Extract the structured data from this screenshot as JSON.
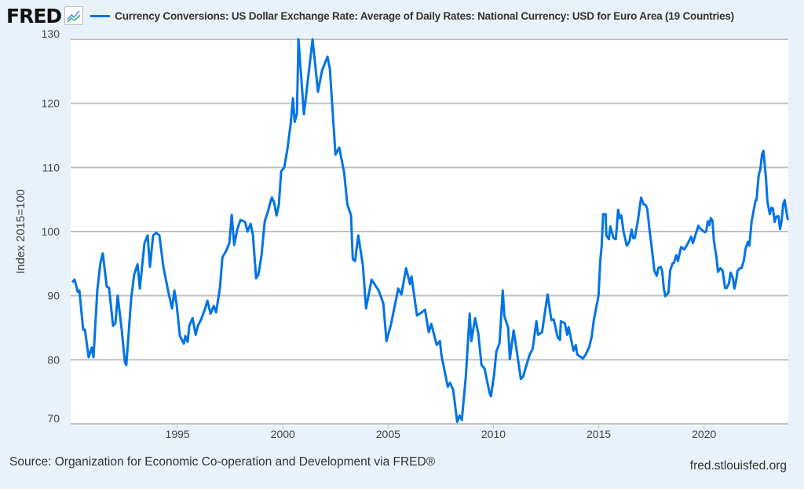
{
  "header": {
    "logo": "FRED",
    "title": "Currency Conversions: US Dollar Exchange Rate: Average of Daily Rates: National Currency: USD for Euro Area (19 Countries)"
  },
  "footer": {
    "source": "Source: Organization for Economic Co-operation and Development via FRED®",
    "site": "fred.stlouisfed.org"
  },
  "chart_data": {
    "type": "line",
    "title": "Currency Conversions: US Dollar Exchange Rate: Average of Daily Rates: National Currency: USD for Euro Area (19 Countries)",
    "xlabel": "",
    "ylabel": "Index 2015=100",
    "xlim": [
      1990,
      2024
    ],
    "ylim": [
      70,
      130
    ],
    "x_ticks": [
      1995,
      2000,
      2005,
      2010,
      2015,
      2020
    ],
    "y_ticks": [
      70,
      80,
      90,
      100,
      110,
      120,
      130
    ],
    "grid": "horizontal",
    "legend": "top",
    "color": "#0073e6",
    "series": [
      {
        "name": "Currency Conversions: US Dollar Exchange Rate: Average of Daily Rates: National Currency: USD for Euro Area (19 Countries)",
        "points": [
          [
            1990.0,
            92.1
          ],
          [
            1990.11,
            92.5
          ],
          [
            1990.26,
            90.6
          ],
          [
            1990.34,
            90.8
          ],
          [
            1990.52,
            84.7
          ],
          [
            1990.6,
            84.7
          ],
          [
            1990.78,
            80.4
          ],
          [
            1990.93,
            81.9
          ],
          [
            1991.01,
            80.4
          ],
          [
            1991.19,
            90.8
          ],
          [
            1991.34,
            95.1
          ],
          [
            1991.45,
            96.6
          ],
          [
            1991.64,
            91.4
          ],
          [
            1991.75,
            91.2
          ],
          [
            1991.94,
            85.3
          ],
          [
            1992.05,
            85.7
          ],
          [
            1992.16,
            90.0
          ],
          [
            1992.35,
            84.7
          ],
          [
            1992.5,
            79.6
          ],
          [
            1992.57,
            79.2
          ],
          [
            1992.8,
            89.6
          ],
          [
            1992.94,
            93.3
          ],
          [
            1993.1,
            94.9
          ],
          [
            1993.21,
            91.1
          ],
          [
            1993.43,
            98.2
          ],
          [
            1993.58,
            99.4
          ],
          [
            1993.69,
            94.5
          ],
          [
            1993.84,
            99.4
          ],
          [
            1993.99,
            99.8
          ],
          [
            1994.14,
            99.4
          ],
          [
            1994.33,
            94.5
          ],
          [
            1994.55,
            90.8
          ],
          [
            1994.74,
            88.0
          ],
          [
            1994.85,
            90.8
          ],
          [
            1994.96,
            88.6
          ],
          [
            1995.11,
            83.7
          ],
          [
            1995.3,
            82.5
          ],
          [
            1995.37,
            83.7
          ],
          [
            1995.48,
            82.8
          ],
          [
            1995.56,
            85.3
          ],
          [
            1995.71,
            86.5
          ],
          [
            1995.86,
            83.9
          ],
          [
            1995.97,
            85.3
          ],
          [
            1996.12,
            86.3
          ],
          [
            1996.31,
            88.0
          ],
          [
            1996.42,
            89.2
          ],
          [
            1996.57,
            87.2
          ],
          [
            1996.72,
            88.4
          ],
          [
            1996.83,
            87.4
          ],
          [
            1997.01,
            91.1
          ],
          [
            1997.13,
            96.0
          ],
          [
            1997.31,
            97.0
          ],
          [
            1997.46,
            98.2
          ],
          [
            1997.57,
            102.6
          ],
          [
            1997.69,
            97.9
          ],
          [
            1997.84,
            100.4
          ],
          [
            1997.99,
            101.8
          ],
          [
            1998.21,
            101.5
          ],
          [
            1998.32,
            100.0
          ],
          [
            1998.47,
            101.2
          ],
          [
            1998.58,
            99.5
          ],
          [
            1998.73,
            92.7
          ],
          [
            1998.84,
            93.3
          ],
          [
            1998.99,
            96.3
          ],
          [
            1999.14,
            101.6
          ],
          [
            1999.29,
            103.1
          ],
          [
            1999.4,
            104.5
          ],
          [
            1999.48,
            105.3
          ],
          [
            1999.59,
            104.5
          ],
          [
            1999.7,
            102.5
          ],
          [
            1999.81,
            104.1
          ],
          [
            1999.92,
            109.4
          ],
          [
            2000.07,
            110.0
          ],
          [
            2000.22,
            112.9
          ],
          [
            2000.37,
            116.8
          ],
          [
            2000.48,
            120.8
          ],
          [
            2000.56,
            117.1
          ],
          [
            2000.67,
            118.4
          ],
          [
            2000.74,
            130.0
          ],
          [
            2001.0,
            118.3
          ],
          [
            2001.41,
            130.0
          ],
          [
            2001.67,
            121.8
          ],
          [
            2001.86,
            125.1
          ],
          [
            2002.12,
            127.3
          ],
          [
            2002.23,
            125.4
          ],
          [
            2002.5,
            112.0
          ],
          [
            2002.68,
            113.1
          ],
          [
            2002.91,
            109.2
          ],
          [
            2003.06,
            104.3
          ],
          [
            2003.24,
            102.5
          ],
          [
            2003.32,
            95.7
          ],
          [
            2003.43,
            95.4
          ],
          [
            2003.58,
            99.4
          ],
          [
            2003.8,
            94.7
          ],
          [
            2003.95,
            88.0
          ],
          [
            2004.21,
            92.5
          ],
          [
            2004.55,
            90.8
          ],
          [
            2004.77,
            88.8
          ],
          [
            2004.92,
            82.9
          ],
          [
            2005.14,
            85.6
          ],
          [
            2005.48,
            91.1
          ],
          [
            2005.63,
            90.2
          ],
          [
            2005.85,
            94.3
          ],
          [
            2006.04,
            91.8
          ],
          [
            2006.11,
            93.0
          ],
          [
            2006.37,
            86.9
          ],
          [
            2006.6,
            87.4
          ],
          [
            2006.75,
            87.8
          ],
          [
            2006.93,
            84.3
          ],
          [
            2007.05,
            85.6
          ],
          [
            2007.31,
            82.3
          ],
          [
            2007.46,
            82.9
          ],
          [
            2007.53,
            80.7
          ],
          [
            2007.83,
            75.8
          ],
          [
            2007.94,
            76.4
          ],
          [
            2008.09,
            75.3
          ],
          [
            2008.28,
            70.3
          ],
          [
            2008.39,
            71.3
          ],
          [
            2008.5,
            70.6
          ],
          [
            2008.69,
            77.4
          ],
          [
            2008.87,
            87.2
          ],
          [
            2008.95,
            82.9
          ],
          [
            2009.13,
            86.5
          ],
          [
            2009.28,
            84.1
          ],
          [
            2009.43,
            79.2
          ],
          [
            2009.58,
            78.6
          ],
          [
            2009.81,
            74.9
          ],
          [
            2009.88,
            74.3
          ],
          [
            2010.03,
            77.7
          ],
          [
            2010.14,
            81.3
          ],
          [
            2010.29,
            82.6
          ],
          [
            2010.44,
            90.8
          ],
          [
            2010.52,
            86.8
          ],
          [
            2010.7,
            85.0
          ],
          [
            2010.78,
            80.1
          ],
          [
            2010.96,
            84.6
          ],
          [
            2011.19,
            79.5
          ],
          [
            2011.3,
            77.0
          ],
          [
            2011.41,
            77.4
          ],
          [
            2011.71,
            80.7
          ],
          [
            2011.86,
            81.7
          ],
          [
            2012.04,
            86.0
          ],
          [
            2012.12,
            83.9
          ],
          [
            2012.31,
            84.3
          ],
          [
            2012.57,
            90.2
          ],
          [
            2012.75,
            86.2
          ],
          [
            2012.86,
            86.3
          ],
          [
            2013.05,
            83.5
          ],
          [
            2013.16,
            83.1
          ],
          [
            2013.2,
            86.0
          ],
          [
            2013.39,
            85.7
          ],
          [
            2013.5,
            83.9
          ],
          [
            2013.57,
            85.1
          ],
          [
            2013.69,
            83.2
          ],
          [
            2013.8,
            81.4
          ],
          [
            2013.91,
            82.3
          ],
          [
            2013.98,
            80.8
          ],
          [
            2014.25,
            80.2
          ],
          [
            2014.36,
            80.7
          ],
          [
            2014.54,
            81.9
          ],
          [
            2014.66,
            83.5
          ],
          [
            2014.77,
            86.3
          ],
          [
            2014.99,
            90.0
          ],
          [
            2015.07,
            95.4
          ],
          [
            2015.14,
            97.8
          ],
          [
            2015.21,
            102.7
          ],
          [
            2015.33,
            102.7
          ],
          [
            2015.36,
            99.4
          ],
          [
            2015.48,
            98.8
          ],
          [
            2015.55,
            100.8
          ],
          [
            2015.7,
            99.0
          ],
          [
            2015.81,
            98.8
          ],
          [
            2015.92,
            103.4
          ],
          [
            2016.0,
            102.1
          ],
          [
            2016.07,
            102.5
          ],
          [
            2016.18,
            100.0
          ],
          [
            2016.33,
            97.8
          ],
          [
            2016.45,
            98.4
          ],
          [
            2016.56,
            100.3
          ],
          [
            2016.63,
            99.0
          ],
          [
            2016.71,
            99.0
          ],
          [
            2016.86,
            101.8
          ],
          [
            2017.01,
            105.3
          ],
          [
            2017.12,
            104.3
          ],
          [
            2017.23,
            104.1
          ],
          [
            2017.3,
            103.6
          ],
          [
            2017.42,
            100.0
          ],
          [
            2017.49,
            98.2
          ],
          [
            2017.64,
            93.9
          ],
          [
            2017.75,
            93.1
          ],
          [
            2017.83,
            94.3
          ],
          [
            2017.94,
            94.5
          ],
          [
            2018.01,
            93.9
          ],
          [
            2018.09,
            91.1
          ],
          [
            2018.16,
            89.9
          ],
          [
            2018.31,
            90.5
          ],
          [
            2018.39,
            93.9
          ],
          [
            2018.5,
            95.0
          ],
          [
            2018.57,
            95.1
          ],
          [
            2018.68,
            96.3
          ],
          [
            2018.76,
            95.4
          ],
          [
            2018.91,
            97.6
          ],
          [
            2019.06,
            97.2
          ],
          [
            2019.24,
            98.2
          ],
          [
            2019.39,
            99.2
          ],
          [
            2019.47,
            98.2
          ],
          [
            2019.73,
            100.9
          ],
          [
            2019.84,
            100.4
          ],
          [
            2020.03,
            99.9
          ],
          [
            2020.1,
            100.0
          ],
          [
            2020.18,
            101.6
          ],
          [
            2020.25,
            101.0
          ],
          [
            2020.32,
            102.1
          ],
          [
            2020.4,
            101.7
          ],
          [
            2020.47,
            98.5
          ],
          [
            2020.59,
            96.0
          ],
          [
            2020.66,
            93.7
          ],
          [
            2020.77,
            94.3
          ],
          [
            2020.88,
            93.9
          ],
          [
            2021.0,
            91.2
          ],
          [
            2021.07,
            91.2
          ],
          [
            2021.18,
            91.9
          ],
          [
            2021.26,
            93.6
          ],
          [
            2021.37,
            92.7
          ],
          [
            2021.44,
            91.1
          ],
          [
            2021.52,
            92.3
          ],
          [
            2021.59,
            93.9
          ],
          [
            2021.71,
            94.3
          ],
          [
            2021.78,
            94.3
          ],
          [
            2021.89,
            95.5
          ],
          [
            2021.97,
            97.3
          ],
          [
            2022.08,
            98.4
          ],
          [
            2022.15,
            97.8
          ],
          [
            2022.26,
            101.6
          ],
          [
            2022.45,
            104.9
          ],
          [
            2022.49,
            104.9
          ],
          [
            2022.6,
            108.9
          ],
          [
            2022.67,
            109.6
          ],
          [
            2022.75,
            112.0
          ],
          [
            2022.82,
            112.6
          ],
          [
            2022.94,
            108.3
          ],
          [
            2023.01,
            104.7
          ],
          [
            2023.12,
            102.7
          ],
          [
            2023.2,
            103.7
          ],
          [
            2023.27,
            103.6
          ],
          [
            2023.35,
            101.5
          ],
          [
            2023.42,
            102.3
          ],
          [
            2023.53,
            102.4
          ],
          [
            2023.61,
            100.4
          ],
          [
            2023.68,
            101.6
          ],
          [
            2023.76,
            104.3
          ],
          [
            2023.83,
            104.9
          ],
          [
            2023.94,
            102.5
          ],
          [
            2023.98,
            101.8
          ]
        ]
      }
    ]
  }
}
